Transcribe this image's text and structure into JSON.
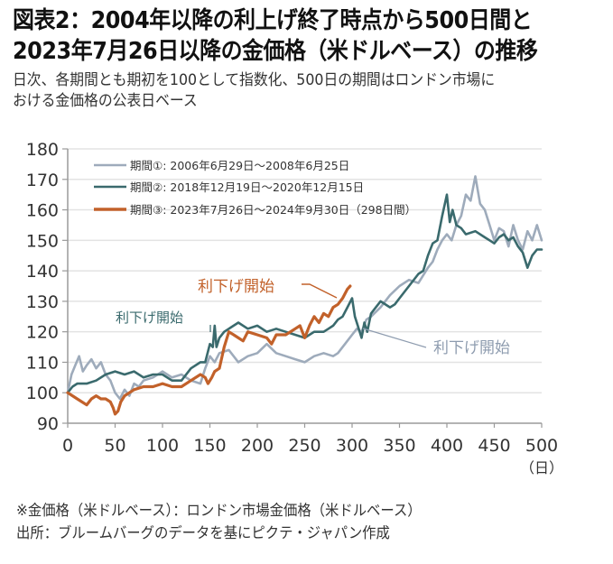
{
  "title_lines": [
    "図表2：2004年以降の利上げ終了時点から500日間と",
    "2023年7月26日以降の金価格（米ドルベース）の推移"
  ],
  "subtitle_lines": [
    "日次、各期間とも期初を100として指数化、500日の期間はロンドン市場に",
    "おける金価格の公表日ベース"
  ],
  "notes": [
    "※金価格（米ドルベース）：ロンドン市場金価格（米ドルベース）",
    "出所：ブルームバーグのデータを基にピクテ・ジャパン作成"
  ],
  "chart_data": {
    "type": "line",
    "title": "図表2：2004年以降の利上げ終了時点から500日間と2023年7月26日以降の金価格（米ドルベース）の推移",
    "xlabel": "（日）",
    "ylabel": "",
    "xlim": [
      0,
      500
    ],
    "ylim": [
      90,
      180
    ],
    "xticks": [
      0,
      50,
      100,
      150,
      200,
      250,
      300,
      350,
      400,
      450,
      500
    ],
    "yticks": [
      90,
      100,
      110,
      120,
      130,
      140,
      150,
      160,
      170,
      180
    ],
    "grid": "horizontal",
    "legend_position": "top-left",
    "series": [
      {
        "name": "期間①: 2006年6月29日～2008年6月25日",
        "color": "#9eabbb",
        "x": [
          0,
          4,
          8,
          12,
          16,
          20,
          25,
          30,
          35,
          40,
          45,
          50,
          55,
          60,
          65,
          70,
          75,
          80,
          90,
          100,
          110,
          120,
          130,
          140,
          145,
          150,
          155,
          160,
          170,
          180,
          190,
          200,
          210,
          220,
          230,
          240,
          250,
          260,
          270,
          280,
          285,
          290,
          300,
          305,
          310,
          315,
          320,
          330,
          340,
          350,
          360,
          370,
          380,
          385,
          390,
          395,
          400,
          405,
          410,
          415,
          420,
          425,
          430,
          435,
          440,
          445,
          450,
          455,
          460,
          465,
          470,
          475,
          480,
          485,
          490,
          495,
          500
        ],
        "values": [
          100,
          106,
          109,
          112,
          107,
          109,
          111,
          108,
          110,
          106,
          104,
          100,
          98,
          101,
          99,
          103,
          102,
          104,
          105,
          107,
          105,
          106,
          104,
          103,
          108,
          112,
          110,
          113,
          114,
          110,
          112,
          113,
          116,
          113,
          112,
          111,
          110,
          112,
          113,
          112,
          113,
          115,
          119,
          121,
          120,
          124,
          125,
          128,
          132,
          135,
          137,
          136,
          141,
          143,
          147,
          150,
          152,
          150,
          155,
          158,
          165,
          163,
          171,
          162,
          160,
          155,
          150,
          154,
          153,
          148,
          155,
          150,
          147,
          153,
          150,
          155,
          150
        ],
        "labels_annotation": "利下げ開始"
      },
      {
        "name": "期間②: 2018年12月19日～2020年12月15日",
        "color": "#3a6a6d",
        "x": [
          0,
          5,
          10,
          20,
          30,
          40,
          50,
          60,
          70,
          80,
          90,
          100,
          110,
          120,
          130,
          140,
          145,
          150,
          153,
          155,
          157,
          160,
          165,
          170,
          180,
          190,
          200,
          210,
          220,
          230,
          240,
          250,
          260,
          270,
          275,
          280,
          285,
          290,
          295,
          300,
          303,
          306,
          310,
          313,
          316,
          320,
          325,
          330,
          340,
          345,
          350,
          360,
          370,
          375,
          380,
          385,
          390,
          395,
          400,
          403,
          406,
          410,
          415,
          420,
          430,
          440,
          445,
          450,
          455,
          460,
          465,
          470,
          475,
          480,
          485,
          490,
          495,
          500
        ],
        "values": [
          100,
          102,
          103,
          103,
          104,
          106,
          107,
          106,
          107,
          105,
          106,
          106,
          104,
          104,
          108,
          110,
          110,
          116,
          115,
          122,
          115,
          118,
          120,
          121,
          123,
          121,
          122,
          120,
          121,
          120,
          119,
          118,
          120,
          120,
          121,
          122,
          124,
          125,
          128,
          131,
          125,
          122,
          118,
          123,
          120,
          126,
          128,
          130,
          128,
          129,
          131,
          135,
          139,
          140,
          145,
          149,
          150,
          158,
          165,
          156,
          160,
          155,
          154,
          152,
          153,
          151,
          150,
          149,
          151,
          152,
          150,
          151,
          148,
          146,
          141,
          145,
          147,
          147
        ]
      },
      {
        "name": "期間③: 2023年7月26日～2024年9月30日（298日間）",
        "color": "#c2612a",
        "x": [
          0,
          5,
          10,
          15,
          20,
          25,
          30,
          35,
          40,
          45,
          48,
          50,
          53,
          56,
          60,
          65,
          70,
          80,
          90,
          100,
          110,
          120,
          130,
          140,
          145,
          148,
          152,
          155,
          160,
          165,
          170,
          175,
          180,
          185,
          190,
          200,
          210,
          215,
          220,
          230,
          240,
          245,
          250,
          255,
          260,
          265,
          270,
          275,
          280,
          285,
          290,
          295,
          298
        ],
        "values": [
          100,
          99,
          98,
          97,
          96,
          98,
          99,
          98,
          98,
          97,
          95,
          93,
          94,
          97,
          99,
          100,
          101,
          102,
          102,
          103,
          102,
          102,
          104,
          106,
          105,
          103,
          105,
          107,
          108,
          115,
          120,
          119,
          118,
          117,
          120,
          119,
          118,
          116,
          119,
          119,
          121,
          122,
          118,
          122,
          125,
          123,
          126,
          125,
          128,
          129,
          131,
          134,
          135
        ],
        "labels_annotation": "利下げ開始"
      }
    ],
    "annotations": [
      {
        "text": "利下げ開始",
        "series": "期間②",
        "color": "#3a6a6d",
        "at_day": 153
      },
      {
        "text": "利下げ開始",
        "series": "期間③",
        "color": "#c2612a",
        "at_day": 285
      },
      {
        "text": "利下げ開始",
        "series": "期間①",
        "color": "#8e9caf",
        "at_day": 310
      }
    ]
  }
}
